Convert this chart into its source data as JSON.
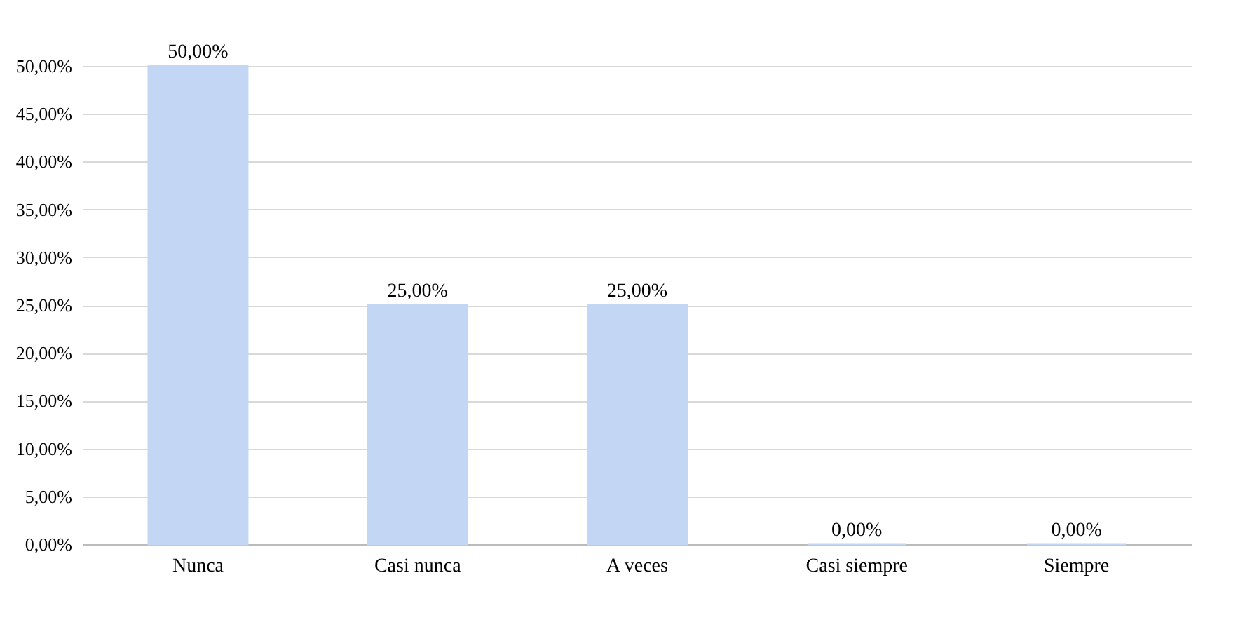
{
  "chart_data": {
    "type": "bar",
    "categories": [
      "Nunca",
      "Casi nunca",
      "A veces",
      "Casi siempre",
      "Siempre"
    ],
    "values": [
      50,
      25,
      25,
      0,
      0
    ],
    "color": "#c3d7f5",
    "value_labels": [
      "50,00%",
      "25,00%",
      "25,00%",
      "0,00%",
      "0,00%"
    ],
    "ylim": [
      0,
      50
    ],
    "yticks": [
      {
        "value": 0,
        "label": "0,00%"
      },
      {
        "value": 5,
        "label": "5,00%"
      },
      {
        "value": 10,
        "label": "10,00%"
      },
      {
        "value": 15,
        "label": "15,00%"
      },
      {
        "value": 20,
        "label": "20,00%"
      },
      {
        "value": 25,
        "label": "25,00%"
      },
      {
        "value": 30,
        "label": "30,00%"
      },
      {
        "value": 35,
        "label": "35,00%"
      },
      {
        "value": 40,
        "label": "40,00%"
      },
      {
        "value": 45,
        "label": "45,00%"
      },
      {
        "value": 50,
        "label": "50,00%"
      }
    ],
    "grid": "y"
  }
}
